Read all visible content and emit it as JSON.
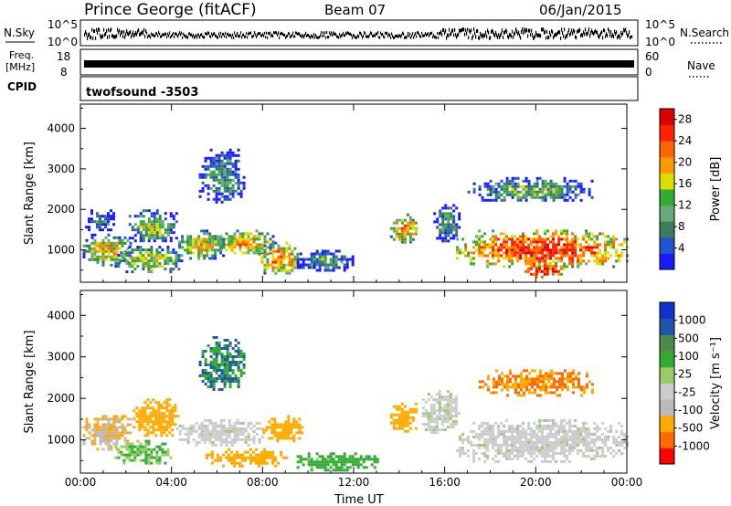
{
  "header": {
    "station": "Prince George (fitACF)",
    "beam": "Beam 07",
    "date": "06/Jan/2015"
  },
  "strips": {
    "nsky_label": "N.Sky",
    "nsky_ticks": [
      "10^5",
      "10^0"
    ],
    "nsearch_label": "N.Search",
    "nsearch_ticks": [
      "10^5",
      "10^0"
    ],
    "freq_label": "Freq.",
    "freq_unit": "[MHz]",
    "freq_ticks": [
      "18",
      "8"
    ],
    "nave_label": "Nave",
    "nave_ticks": [
      "60",
      "0"
    ],
    "cpid_label": "CPID",
    "cpid_value": "twofsound  -3503"
  },
  "colors": {
    "power_scale": [
      "#1a1aff",
      "#2255cc",
      "#3a7d5a",
      "#66aa77",
      "#33aa33",
      "#dddd00",
      "#ff9900",
      "#ff6600",
      "#ff2200",
      "#dd0000"
    ],
    "velocity_scale": [
      "#ff0000",
      "#ff6a00",
      "#ffaa00",
      "#bbbbbb",
      "#cccccc",
      "#99cc66",
      "#33aa33",
      "#4c8a4c",
      "#2255aa",
      "#1133cc"
    ]
  },
  "chart_data": [
    {
      "type": "heatmap",
      "name": "power",
      "ylabel": "Slant Range [km]",
      "yticks": [
        1000,
        2000,
        3000,
        4000
      ],
      "ylim": [
        200,
        4600
      ],
      "xlim": [
        0,
        24
      ],
      "xticks": [
        "00:00",
        "04:00",
        "08:00",
        "12:00",
        "16:00",
        "20:00",
        "00:00"
      ],
      "colorbar_label": "Power [dB]",
      "colorbar_ticks": [
        "4",
        "8",
        "12",
        "16",
        "20",
        "24",
        "28"
      ],
      "colorbar_range": [
        0,
        30
      ],
      "regions": [
        {
          "t0": 0.1,
          "t1": 2.2,
          "r0": 650,
          "r1": 1400,
          "level": 18
        },
        {
          "t0": 0.2,
          "t1": 1.5,
          "r0": 1500,
          "r1": 2000,
          "level": 8
        },
        {
          "t0": 1.5,
          "t1": 4.5,
          "r0": 450,
          "r1": 1100,
          "level": 16
        },
        {
          "t0": 2.0,
          "t1": 4.2,
          "r0": 1200,
          "r1": 2000,
          "level": 14
        },
        {
          "t0": 4.3,
          "t1": 6.3,
          "r0": 800,
          "r1": 1500,
          "level": 18
        },
        {
          "t0": 5.2,
          "t1": 7.2,
          "r0": 2200,
          "r1": 3500,
          "level": 10
        },
        {
          "t0": 6.0,
          "t1": 8.5,
          "r0": 900,
          "r1": 1500,
          "level": 20
        },
        {
          "t0": 7.8,
          "t1": 9.6,
          "r0": 450,
          "r1": 1200,
          "level": 22
        },
        {
          "t0": 9.5,
          "t1": 12.0,
          "r0": 500,
          "r1": 1000,
          "level": 10
        },
        {
          "t0": 13.6,
          "t1": 14.8,
          "r0": 1200,
          "r1": 1900,
          "level": 22
        },
        {
          "t0": 15.5,
          "t1": 16.6,
          "r0": 1200,
          "r1": 2200,
          "level": 10
        },
        {
          "t0": 16.5,
          "t1": 24.0,
          "r0": 600,
          "r1": 1500,
          "level": 26
        },
        {
          "t0": 19.5,
          "t1": 21.2,
          "r0": 300,
          "r1": 700,
          "level": 28
        },
        {
          "t0": 17.0,
          "t1": 22.5,
          "r0": 2200,
          "r1": 2800,
          "level": 12
        }
      ]
    },
    {
      "type": "heatmap",
      "name": "velocity",
      "ylabel": "Slant Range [km]",
      "yticks": [
        1000,
        2000,
        3000,
        4000
      ],
      "ylim": [
        200,
        4600
      ],
      "xlim": [
        0,
        24
      ],
      "xlabel": "Time UT",
      "xticks": [
        "00:00",
        "04:00",
        "08:00",
        "12:00",
        "16:00",
        "20:00",
        "00:00"
      ],
      "colorbar_label": "Velocity [m s⁻¹]",
      "colorbar_ticks": [
        "-1000",
        "-500",
        "-100",
        "-25",
        "25",
        "100",
        "500",
        "1000"
      ],
      "regions": [
        {
          "t0": 0.1,
          "t1": 2.2,
          "r0": 800,
          "r1": 1600,
          "level": -100
        },
        {
          "t0": 1.5,
          "t1": 4.0,
          "r0": 450,
          "r1": 1000,
          "level": 100
        },
        {
          "t0": 2.3,
          "t1": 4.3,
          "r0": 1100,
          "r1": 2000,
          "level": -300
        },
        {
          "t0": 4.2,
          "t1": 8.0,
          "r0": 900,
          "r1": 1500,
          "level": 0
        },
        {
          "t0": 5.5,
          "t1": 9.0,
          "r0": 400,
          "r1": 800,
          "level": -200
        },
        {
          "t0": 5.2,
          "t1": 7.2,
          "r0": 2200,
          "r1": 3500,
          "level": 500
        },
        {
          "t0": 8.0,
          "t1": 9.8,
          "r0": 1000,
          "r1": 1600,
          "level": -300
        },
        {
          "t0": 9.5,
          "t1": 13.0,
          "r0": 300,
          "r1": 700,
          "level": 150
        },
        {
          "t0": 13.6,
          "t1": 14.8,
          "r0": 1200,
          "r1": 1900,
          "level": -300
        },
        {
          "t0": 15.0,
          "t1": 16.6,
          "r0": 1200,
          "r1": 2200,
          "level": 0
        },
        {
          "t0": 16.5,
          "t1": 24.0,
          "r0": 500,
          "r1": 1500,
          "level": 0
        },
        {
          "t0": 17.5,
          "t1": 22.5,
          "r0": 2100,
          "r1": 2700,
          "level": -500
        }
      ]
    }
  ]
}
